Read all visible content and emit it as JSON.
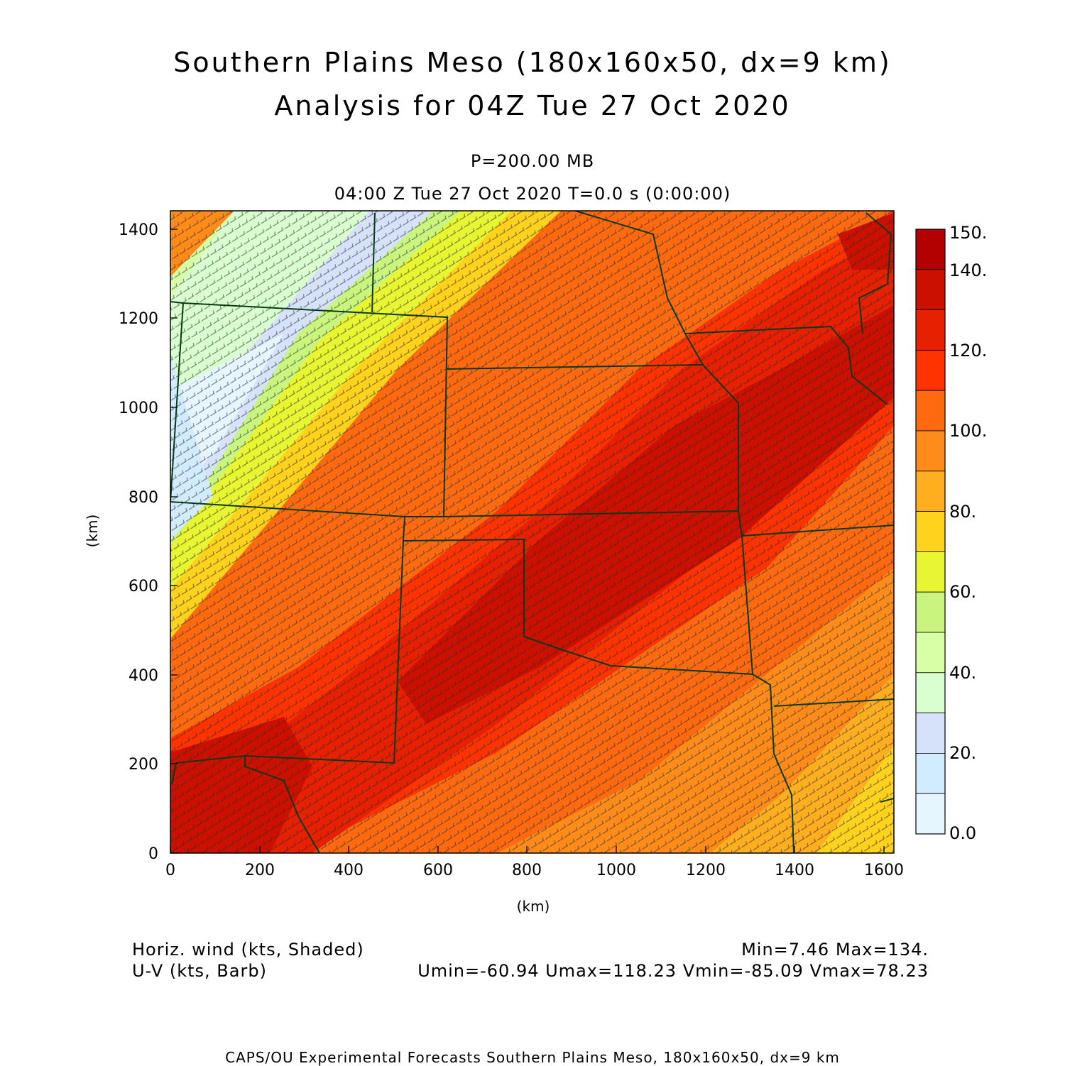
{
  "header": {
    "title_line1": "Southern Plains Meso (180x160x50, dx=9 km)",
    "title_line2": "Analysis for 04Z Tue 27 Oct 2020",
    "level": "P=200.00 MB",
    "valid_time": "04:00 Z Tue 27 Oct 2020   T=0.0 s (0:00:00)"
  },
  "axes": {
    "xlabel": "(km)",
    "ylabel": "(km)",
    "xticks": [
      "0",
      "200",
      "400",
      "600",
      "800",
      "1000",
      "1200",
      "1400",
      "1600"
    ],
    "yticks": [
      "0",
      "200",
      "400",
      "600",
      "800",
      "1000",
      "1200",
      "1400"
    ]
  },
  "colorbar": {
    "labels": [
      "150.",
      "140.",
      "120.",
      "100.",
      "80.",
      "60.",
      "40.",
      "20.",
      "0.0"
    ],
    "colors": [
      "#b30000",
      "#cc1000",
      "#e62000",
      "#ff3300",
      "#ff6a10",
      "#ff8c1a",
      "#ffae20",
      "#ffd21e",
      "#e8f532",
      "#c9f57e",
      "#d6ffa6",
      "#d9ffd0",
      "#d6e2fa",
      "#d2ecff",
      "#e6f6ff"
    ]
  },
  "footer": {
    "field1": "Horiz. wind (kts, Shaded)",
    "field2": "U-V (kts, Barb)",
    "stats1": "Min=7.46 Max=134.",
    "stats2": "Umin=-60.94 Umax=118.23 Vmin=-85.09 Vmax=78.23",
    "credit": "CAPS/OU Experimental Forecasts  Southern Plains Meso, 180x160x50, dx=9 km"
  }
}
